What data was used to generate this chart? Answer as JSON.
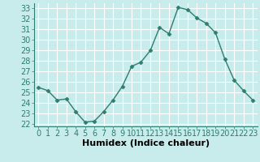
{
  "x": [
    0,
    1,
    2,
    3,
    4,
    5,
    6,
    7,
    8,
    9,
    10,
    11,
    12,
    13,
    14,
    15,
    16,
    17,
    18,
    19,
    20,
    21,
    22,
    23
  ],
  "y": [
    25.5,
    25.2,
    24.3,
    24.4,
    23.2,
    22.2,
    22.3,
    23.2,
    24.3,
    25.6,
    27.5,
    27.9,
    29.0,
    31.2,
    30.6,
    33.1,
    32.9,
    32.1,
    31.6,
    30.7,
    28.2,
    26.2,
    25.2,
    24.3
  ],
  "line_color": "#2e7d6e",
  "marker": "D",
  "marker_size": 2.5,
  "bg_color": "#c8ecec",
  "grid_color": "#ffffff",
  "xlabel": "Humidex (Indice chaleur)",
  "ylabel_ticks": [
    22,
    23,
    24,
    25,
    26,
    27,
    28,
    29,
    30,
    31,
    32,
    33
  ],
  "xtick_labels": [
    "0",
    "1",
    "2",
    "3",
    "4",
    "5",
    "6",
    "7",
    "8",
    "9",
    "10",
    "11",
    "12",
    "13",
    "14",
    "15",
    "16",
    "17",
    "18",
    "19",
    "20",
    "21",
    "22",
    "23"
  ],
  "ylim": [
    21.8,
    33.5
  ],
  "xlim": [
    -0.5,
    23.5
  ],
  "xlabel_fontsize": 8,
  "tick_fontsize": 7,
  "line_width": 1.0
}
